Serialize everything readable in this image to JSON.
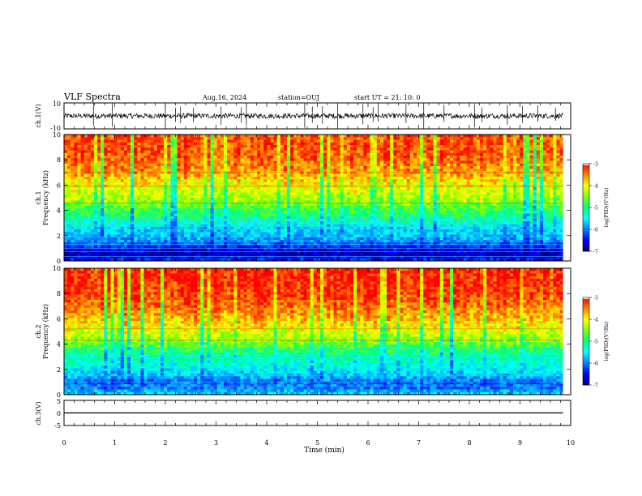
{
  "header": {
    "title": "VLF Spectra",
    "date": "Aug.16, 2024",
    "station": "station=OUJ",
    "start": "start  UT =   21: 10: 0"
  },
  "colors": {
    "ramp": [
      "#000080",
      "#0000ff",
      "#0080ff",
      "#00ffff",
      "#00ff80",
      "#80ff00",
      "#ffff00",
      "#ff8000",
      "#ff0000",
      "#ffffff"
    ]
  },
  "chart_data": [
    {
      "id": "ch1-waveform",
      "type": "line",
      "ylabel": "ch.1(V)",
      "ylim": [
        -10,
        10
      ],
      "yticks": [
        "10",
        "-10"
      ],
      "baseline": 0,
      "noise_amplitude": 2,
      "spike_times_min": [
        0.58,
        0.95,
        2.0,
        2.2,
        2.3,
        2.55,
        3.1,
        3.5,
        3.6,
        4.75,
        4.9,
        5.1,
        5.4,
        5.9,
        6.1,
        6.2,
        6.75,
        7.1,
        7.5,
        8.1,
        8.25,
        8.75,
        9.05,
        9.35,
        9.7
      ]
    },
    {
      "id": "ch1-spectrogram",
      "type": "heatmap",
      "ylabel": "Frequency  (kHz)",
      "channel": "ch.1",
      "xlim": [
        0,
        9.85
      ],
      "ylim": [
        0,
        10
      ],
      "yticks": [
        "0",
        "2",
        "4",
        "6",
        "8",
        "10"
      ],
      "colorbar": {
        "label": "log(PSD)(V²/Hz)",
        "ticks": [
          "-3",
          "-4",
          "-5",
          "-6",
          "-7"
        ],
        "range": [
          -7,
          -3
        ]
      },
      "profile_freq_khz": [
        0,
        0.5,
        1,
        1.5,
        2,
        2.5,
        3,
        3.5,
        4,
        5,
        6,
        7,
        8,
        9,
        10
      ],
      "profile_log_psd": [
        -6.3,
        -6.8,
        -6.5,
        -6.0,
        -5.7,
        -5.6,
        -5.3,
        -5.0,
        -4.8,
        -4.3,
        -4.0,
        -3.6,
        -3.4,
        -3.3,
        -3.3
      ],
      "lines_khz": [
        0.35,
        0.75,
        1.0,
        1.3,
        1.6,
        1.9,
        2.2,
        2.5,
        2.7,
        2.9,
        3.2,
        3.4,
        4.6,
        5.9,
        7.0
      ]
    },
    {
      "id": "ch2-spectrogram",
      "type": "heatmap",
      "ylabel": "Frequency  (kHz)",
      "channel": "ch.2",
      "xlim": [
        0,
        9.85
      ],
      "ylim": [
        0,
        10
      ],
      "yticks": [
        "0",
        "2",
        "4",
        "6",
        "8",
        "10"
      ],
      "colorbar": {
        "label": "log(PSD)(V²/Hz)",
        "ticks": [
          "-3",
          "-4",
          "-5",
          "-6",
          "-7"
        ],
        "range": [
          -7,
          -3
        ]
      },
      "profile_freq_khz": [
        0,
        0.5,
        1,
        1.5,
        2,
        2.5,
        3,
        3.5,
        4,
        5,
        6,
        7,
        8,
        9,
        10
      ],
      "profile_log_psd": [
        -5.6,
        -6.0,
        -6.1,
        -5.7,
        -5.5,
        -5.3,
        -5.2,
        -4.9,
        -4.6,
        -4.1,
        -3.7,
        -3.4,
        -3.2,
        -3.1,
        -3.1
      ],
      "lines_khz": [
        0.7,
        1.0,
        1.5,
        2.0,
        2.8,
        3.0,
        3.6,
        4.3,
        5.2
      ]
    },
    {
      "id": "ch3-waveform",
      "type": "line",
      "ylabel": "ch.3(V)",
      "ylim": [
        -5,
        5
      ],
      "yticks": [
        "5",
        "0",
        "-5"
      ],
      "baseline": 0,
      "noise_amplitude": 0,
      "spike_times_min": []
    }
  ],
  "x_axis": {
    "label": "Time  (min)",
    "xlim": [
      0,
      10
    ],
    "ticks": [
      "0",
      "1",
      "2",
      "3",
      "4",
      "5",
      "6",
      "7",
      "8",
      "9",
      "10"
    ]
  }
}
